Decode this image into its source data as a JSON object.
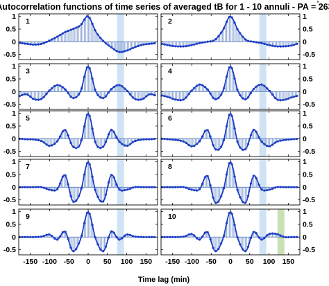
{
  "chart_data": {
    "type": "line",
    "title": "Autocorrelation functions of time series of averaged tB for 1 - 10 annuli - PA = 263",
    "title_degree_mark": "°",
    "xlabel": "Time lag  (min)",
    "ylabel": "",
    "xlim": [
      -180,
      180
    ],
    "ylim": [
      -0.7,
      1.1
    ],
    "x_ticks": [
      -150,
      -100,
      -50,
      0,
      50,
      100,
      150
    ],
    "x_tick_labels": [
      "-150",
      "-100",
      "-50",
      "0",
      "50",
      "100",
      "150"
    ],
    "y_ticks": [
      1,
      0.5,
      0,
      -0.5
    ],
    "y_tick_labels": [
      "1",
      "0.5",
      "0",
      "-0.5"
    ],
    "layout": "5 rows x 2 columns",
    "left_column_y_ticks": "left",
    "right_column_y_ticks": "right",
    "line_color": "#1f3fc4",
    "stem_color": "#6f8fc9",
    "blue_band_color": "#cfe3f5",
    "green_band_color": "#c9e0b4",
    "panels": [
      {
        "label": "1",
        "bands": [
          {
            "range": [
              75,
              93
            ],
            "color": "blue"
          }
        ],
        "x": [
          -180,
          -160,
          -140,
          -120,
          -100,
          -80,
          -60,
          -40,
          -20,
          0,
          20,
          40,
          60,
          80,
          100,
          120,
          140,
          160,
          180
        ],
        "y": [
          -0.04,
          -0.08,
          -0.11,
          -0.08,
          0.05,
          0.2,
          0.38,
          0.5,
          0.65,
          1.0,
          0.4,
          0.02,
          -0.22,
          -0.4,
          -0.35,
          -0.22,
          -0.12,
          -0.08,
          -0.05
        ]
      },
      {
        "label": "2",
        "bands": [
          {
            "range": [
              75,
              93
            ],
            "color": "blue"
          }
        ],
        "x": [
          -180,
          -160,
          -140,
          -120,
          -100,
          -80,
          -60,
          -40,
          -20,
          0,
          20,
          40,
          60,
          80,
          100,
          120,
          140,
          160,
          180
        ],
        "y": [
          -0.08,
          -0.14,
          -0.18,
          -0.18,
          -0.13,
          -0.05,
          0.0,
          0.08,
          0.45,
          1.0,
          0.45,
          0.08,
          0.0,
          -0.05,
          -0.13,
          -0.18,
          -0.18,
          -0.14,
          -0.05
        ]
      },
      {
        "label": "3",
        "bands": [
          {
            "range": [
              75,
              93
            ],
            "color": "blue"
          }
        ],
        "x": [
          -180,
          -160,
          -140,
          -120,
          -100,
          -80,
          -60,
          -40,
          -20,
          0,
          20,
          40,
          60,
          80,
          100,
          120,
          140,
          160,
          180
        ],
        "y": [
          -0.18,
          -0.1,
          -0.3,
          -0.28,
          0.05,
          0.26,
          0.1,
          -0.25,
          0.0,
          1.0,
          0.0,
          -0.25,
          0.1,
          0.26,
          0.05,
          -0.28,
          -0.3,
          -0.1,
          -0.18
        ]
      },
      {
        "label": "4",
        "bands": [
          {
            "range": [
              75,
              93
            ],
            "color": "blue"
          }
        ],
        "x": [
          -180,
          -160,
          -140,
          -120,
          -100,
          -80,
          -60,
          -40,
          -20,
          0,
          20,
          40,
          60,
          80,
          100,
          120,
          140,
          160,
          180
        ],
        "y": [
          -0.15,
          -0.22,
          -0.32,
          -0.3,
          0.05,
          0.28,
          0.1,
          -0.3,
          0.0,
          1.0,
          0.0,
          -0.3,
          0.1,
          0.28,
          0.05,
          -0.3,
          -0.32,
          -0.22,
          -0.15
        ]
      },
      {
        "label": "5",
        "bands": [
          {
            "range": [
              75,
              93
            ],
            "color": "blue"
          }
        ],
        "x": [
          -180,
          -160,
          -140,
          -120,
          -100,
          -80,
          -60,
          -40,
          -20,
          0,
          20,
          40,
          60,
          80,
          100,
          120,
          140,
          160,
          180
        ],
        "y": [
          0.0,
          -0.02,
          -0.03,
          -0.1,
          -0.28,
          -0.1,
          0.35,
          -0.3,
          -0.2,
          1.0,
          -0.2,
          -0.3,
          0.35,
          -0.1,
          -0.28,
          -0.1,
          -0.03,
          -0.02,
          0.0
        ]
      },
      {
        "label": "6",
        "bands": [
          {
            "range": [
              75,
              93
            ],
            "color": "blue"
          }
        ],
        "x": [
          -180,
          -160,
          -140,
          -120,
          -100,
          -80,
          -60,
          -40,
          -20,
          0,
          20,
          40,
          60,
          80,
          100,
          120,
          140,
          160,
          180
        ],
        "y": [
          0.0,
          -0.02,
          -0.05,
          -0.12,
          -0.3,
          -0.1,
          0.35,
          -0.4,
          -0.2,
          1.0,
          -0.2,
          -0.4,
          0.35,
          -0.1,
          -0.3,
          -0.12,
          -0.05,
          -0.02,
          0.0
        ]
      },
      {
        "label": "7",
        "bands": [
          {
            "range": [
              75,
              93
            ],
            "color": "blue"
          }
        ],
        "x": [
          -180,
          -160,
          -140,
          -120,
          -100,
          -80,
          -60,
          -40,
          -20,
          0,
          20,
          40,
          60,
          80,
          100,
          120,
          140,
          160,
          180
        ],
        "y": [
          0.0,
          0.0,
          0.0,
          0.0,
          -0.1,
          -0.08,
          0.48,
          -0.55,
          -0.2,
          1.0,
          -0.2,
          -0.55,
          0.48,
          -0.08,
          -0.1,
          0.0,
          0.0,
          0.0,
          0.0
        ]
      },
      {
        "label": "8",
        "bands": [
          {
            "range": [
              75,
              93
            ],
            "color": "blue"
          }
        ],
        "x": [
          -180,
          -160,
          -140,
          -120,
          -100,
          -80,
          -60,
          -40,
          -20,
          0,
          20,
          40,
          60,
          80,
          100,
          120,
          140,
          160,
          180
        ],
        "y": [
          0.0,
          0.0,
          0.0,
          0.0,
          -0.1,
          -0.08,
          0.45,
          -0.6,
          -0.2,
          1.0,
          -0.2,
          -0.6,
          0.45,
          -0.08,
          -0.1,
          0.0,
          0.0,
          0.0,
          0.0
        ]
      },
      {
        "label": "9",
        "bands": [
          {
            "range": [
              75,
              93
            ],
            "color": "blue"
          }
        ],
        "x": [
          -180,
          -160,
          -140,
          -120,
          -100,
          -80,
          -60,
          -40,
          -20,
          0,
          20,
          40,
          60,
          80,
          100,
          120,
          140,
          160,
          180
        ],
        "y": [
          0.0,
          0.0,
          0.0,
          0.02,
          0.1,
          -0.1,
          0.22,
          -0.55,
          -0.1,
          1.0,
          -0.1,
          -0.55,
          0.22,
          -0.1,
          0.1,
          0.02,
          0.0,
          0.0,
          0.0
        ]
      },
      {
        "label": "10",
        "bands": [
          {
            "range": [
              75,
              93
            ],
            "color": "blue"
          },
          {
            "range": [
              122,
              140
            ],
            "color": "green"
          }
        ],
        "x": [
          -180,
          -160,
          -140,
          -120,
          -100,
          -80,
          -60,
          -40,
          -20,
          0,
          20,
          40,
          60,
          80,
          100,
          120,
          140,
          160,
          180
        ],
        "y": [
          0.0,
          0.0,
          0.0,
          0.02,
          0.12,
          -0.1,
          0.2,
          -0.55,
          -0.1,
          1.0,
          -0.1,
          -0.55,
          0.2,
          -0.1,
          0.12,
          0.12,
          0.0,
          0.0,
          0.0
        ]
      }
    ]
  }
}
